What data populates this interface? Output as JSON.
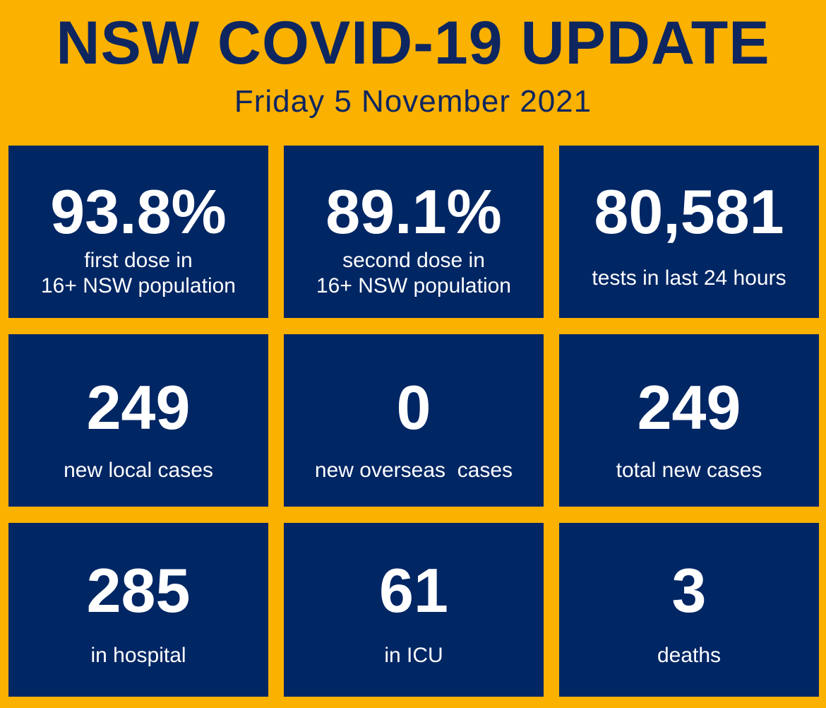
{
  "header": {
    "title": "NSW COVID-19 UPDATE",
    "date": "Friday 5 November 2021"
  },
  "colors": {
    "background": "#fbb100",
    "tile": "#002664",
    "title_text": "#0e2660",
    "tile_text": "#ffffff"
  },
  "stats": [
    {
      "value": "93.8%",
      "label_lines": [
        "first dose in",
        "16+ NSW population"
      ]
    },
    {
      "value": "89.1%",
      "label_lines": [
        "second dose in",
        "16+ NSW population"
      ]
    },
    {
      "value": "80,581",
      "label_lines": [
        "tests in last 24 hours"
      ]
    },
    {
      "value": "249",
      "label_lines": [
        "new local cases"
      ]
    },
    {
      "value": "0",
      "label_lines": [
        "new overseas  cases"
      ]
    },
    {
      "value": "249",
      "label_lines": [
        "total new cases"
      ]
    },
    {
      "value": "285",
      "label_lines": [
        "in hospital"
      ]
    },
    {
      "value": "61",
      "label_lines": [
        "in ICU"
      ]
    },
    {
      "value": "3",
      "label_lines": [
        "deaths"
      ]
    }
  ]
}
